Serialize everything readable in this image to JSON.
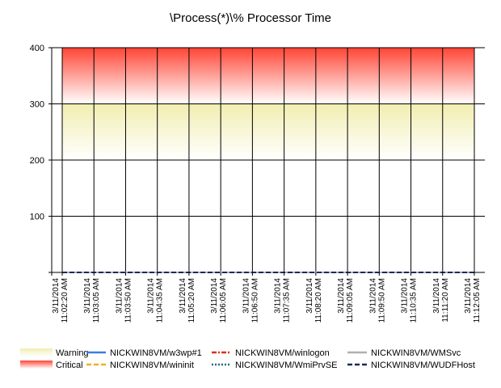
{
  "chart_data": {
    "type": "line",
    "title": "\\Process(*)\\% Processor Time",
    "xlabel": "",
    "ylabel": "",
    "ylim": [
      0,
      400
    ],
    "yticks": [
      100,
      200,
      300,
      400
    ],
    "grid": true,
    "legend_position": "bottom",
    "bands": [
      {
        "name": "Warning",
        "from": 200,
        "to": 300,
        "color_top": "#f3f0b8",
        "color_bottom": "#ffffff"
      },
      {
        "name": "Critical",
        "from": 300,
        "to": 400,
        "color_top": "#ff4a3a",
        "color_bottom": "#ffffff"
      }
    ],
    "categories": [
      [
        "3/11/2014",
        "11:02:20 AM"
      ],
      [
        "3/11/2014",
        "11:03:05 AM"
      ],
      [
        "3/11/2014",
        "11:03:50 AM"
      ],
      [
        "3/11/2014",
        "11:04:35 AM"
      ],
      [
        "3/11/2014",
        "11:05:20 AM"
      ],
      [
        "3/11/2014",
        "11:06:05 AM"
      ],
      [
        "3/11/2014",
        "11:06:50 AM"
      ],
      [
        "3/11/2014",
        "11:07:35 AM"
      ],
      [
        "3/11/2014",
        "11:08:20 AM"
      ],
      [
        "3/11/2014",
        "11:09:05 AM"
      ],
      [
        "3/11/2014",
        "11:09:50 AM"
      ],
      [
        "3/11/2014",
        "11:10:35 AM"
      ],
      [
        "3/11/2014",
        "11:11:20 AM"
      ],
      [
        "3/11/2014",
        "11:12:05 AM"
      ]
    ],
    "series": [
      {
        "name": "NICKWIN8VM/w3wp#1",
        "color": "#3a7fe0",
        "dash": "solid",
        "values": [
          0,
          0,
          0,
          0,
          0,
          0,
          0,
          0,
          0,
          0,
          0,
          0,
          0,
          0
        ]
      },
      {
        "name": "NICKWIN8VM/wininit",
        "color": "#f0b020",
        "dash": "dashed",
        "values": [
          0,
          0,
          0,
          0,
          0,
          0,
          0,
          0,
          0,
          0,
          0,
          0,
          0,
          0
        ]
      },
      {
        "name": "NICKWIN8VM/winlogon",
        "color": "#e03010",
        "dash": "dashdot",
        "values": [
          0,
          0,
          0,
          0,
          0,
          0,
          0,
          0,
          0,
          0,
          0,
          0,
          0,
          0
        ]
      },
      {
        "name": "NICKWIN8VM/WmiPrvSE",
        "color": "#1a6a7a",
        "dash": "dotted",
        "values": [
          0,
          0,
          0,
          0,
          0,
          0,
          0,
          0,
          0,
          0,
          0,
          0,
          0,
          0
        ]
      },
      {
        "name": "NICKWIN8VM/WMSvc",
        "color": "#b0b0b0",
        "dash": "solid",
        "values": [
          0,
          0,
          0,
          0,
          0,
          0,
          0,
          0,
          0,
          0,
          0,
          0,
          0,
          0
        ]
      },
      {
        "name": "NICKWIN8VM/WUDFHost",
        "color": "#1a2a5a",
        "dash": "dashed",
        "values": [
          0,
          0,
          0,
          0,
          0,
          0,
          0,
          0,
          0,
          0,
          0,
          0,
          0,
          0
        ]
      }
    ]
  }
}
